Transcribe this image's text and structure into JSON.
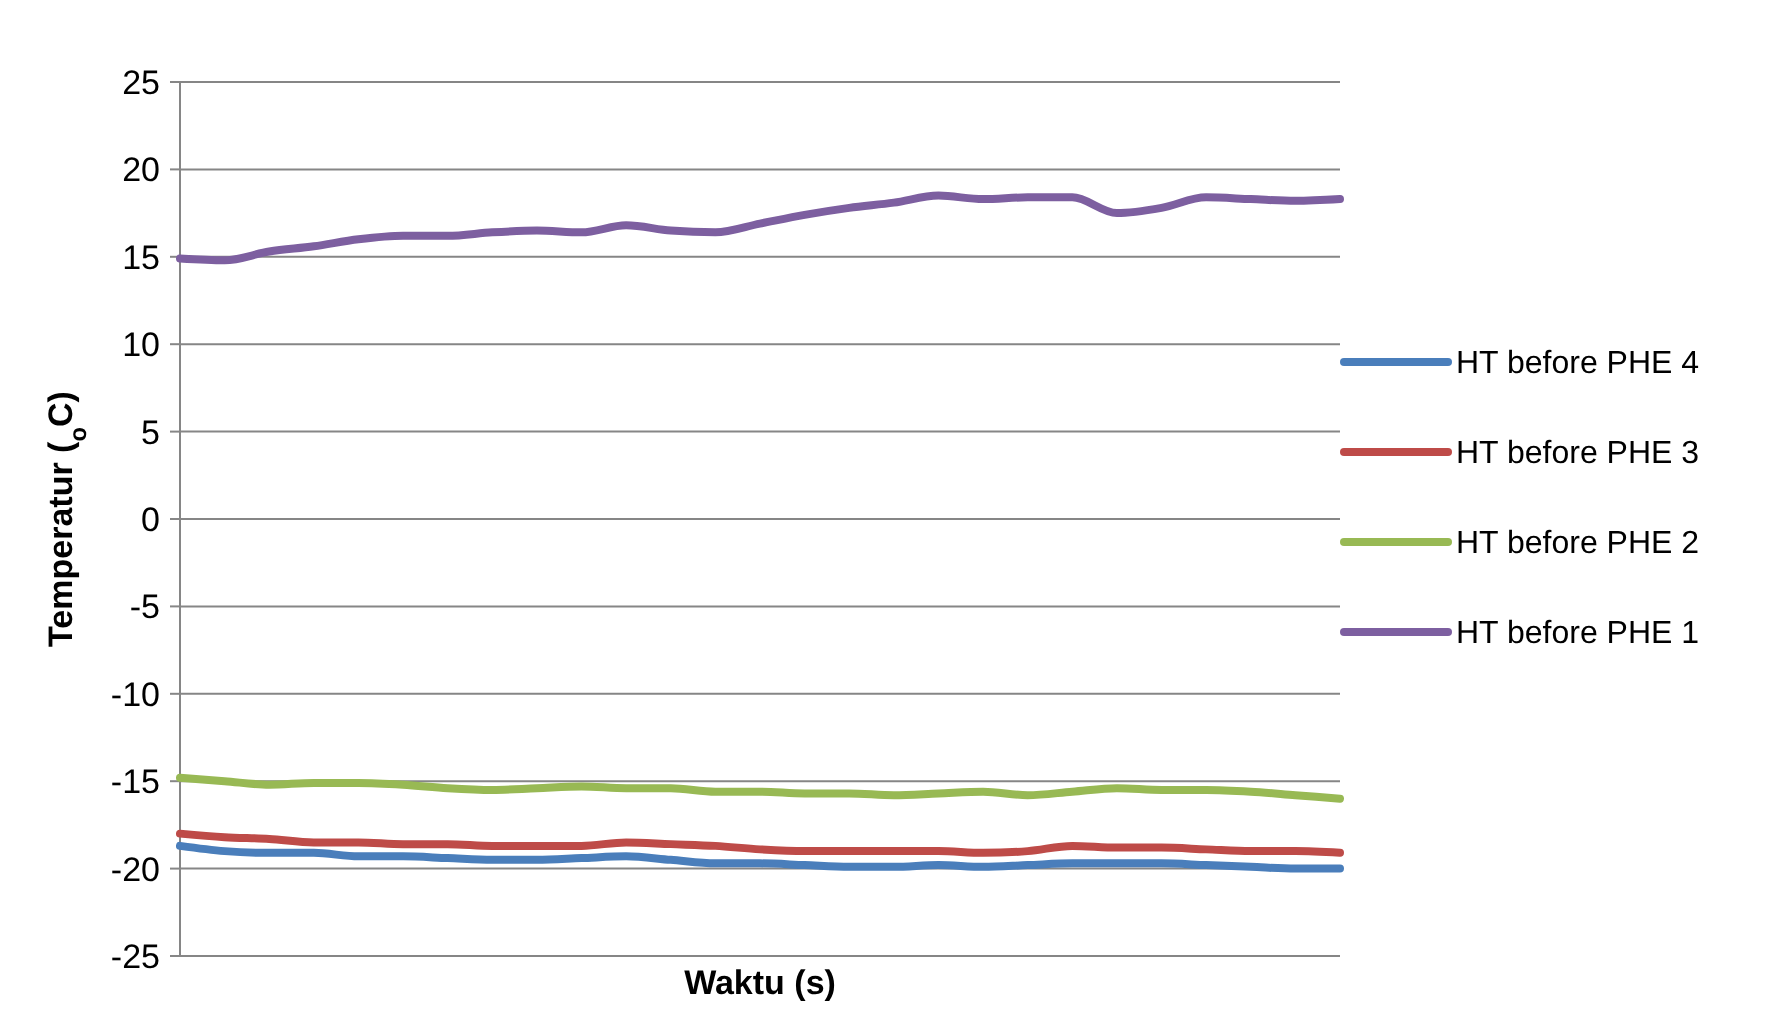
{
  "chart_data": {
    "type": "line",
    "xlabel": "Waktu (s)",
    "ylabel": "Temperatur ($_{o}$C)",
    "categories": [
      null,
      null,
      null,
      null,
      null,
      null,
      null,
      null,
      null,
      null,
      null,
      null,
      null,
      null,
      null,
      null,
      null,
      null,
      null,
      null,
      null,
      null,
      null,
      null,
      null,
      null,
      null
    ],
    "series": [
      {
        "name": "HT before PHE 4",
        "color": "#4a7ebb",
        "values": [
          -18.7,
          -19.0,
          -19.1,
          -19.1,
          -19.3,
          -19.3,
          -19.4,
          -19.5,
          -19.5,
          -19.4,
          -19.3,
          -19.5,
          -19.7,
          -19.7,
          -19.8,
          -19.9,
          -19.9,
          -19.8,
          -19.9,
          -19.8,
          -19.7,
          -19.7,
          -19.7,
          -19.8,
          -19.9,
          -20.0,
          -20.0
        ]
      },
      {
        "name": "HT before PHE 3",
        "color": "#be4b48",
        "values": [
          -18.0,
          -18.2,
          -18.3,
          -18.5,
          -18.5,
          -18.6,
          -18.6,
          -18.7,
          -18.7,
          -18.7,
          -18.5,
          -18.6,
          -18.7,
          -18.9,
          -19.0,
          -19.0,
          -19.0,
          -19.0,
          -19.1,
          -19.0,
          -18.7,
          -18.8,
          -18.8,
          -18.9,
          -19.0,
          -19.0,
          -19.1
        ]
      },
      {
        "name": "HT before PHE 2",
        "color": "#98b954",
        "values": [
          -14.8,
          -15.0,
          -15.2,
          -15.1,
          -15.1,
          -15.2,
          -15.4,
          -15.5,
          -15.4,
          -15.3,
          -15.4,
          -15.4,
          -15.6,
          -15.6,
          -15.7,
          -15.7,
          -15.8,
          -15.7,
          -15.6,
          -15.8,
          -15.6,
          -15.4,
          -15.5,
          -15.5,
          -15.6,
          -15.8,
          -16.0
        ]
      },
      {
        "name": "HT before PHE 1",
        "color": "#7d5fa0",
        "values": [
          14.9,
          14.8,
          15.3,
          15.6,
          16.0,
          16.2,
          16.2,
          16.4,
          16.5,
          16.4,
          16.8,
          16.5,
          16.4,
          16.9,
          17.4,
          17.8,
          18.1,
          18.5,
          18.3,
          18.4,
          18.4,
          17.5,
          17.8,
          18.4,
          18.3,
          18.2,
          18.3
        ]
      }
    ],
    "ylim": [
      -25,
      25
    ],
    "yticks": [
      -25,
      -20,
      -15,
      -10,
      -5,
      0,
      5,
      10,
      15,
      20,
      25
    ],
    "grid": "y",
    "legend": "right",
    "marker": "none",
    "line_style": "solid",
    "tick_labels": "y"
  }
}
